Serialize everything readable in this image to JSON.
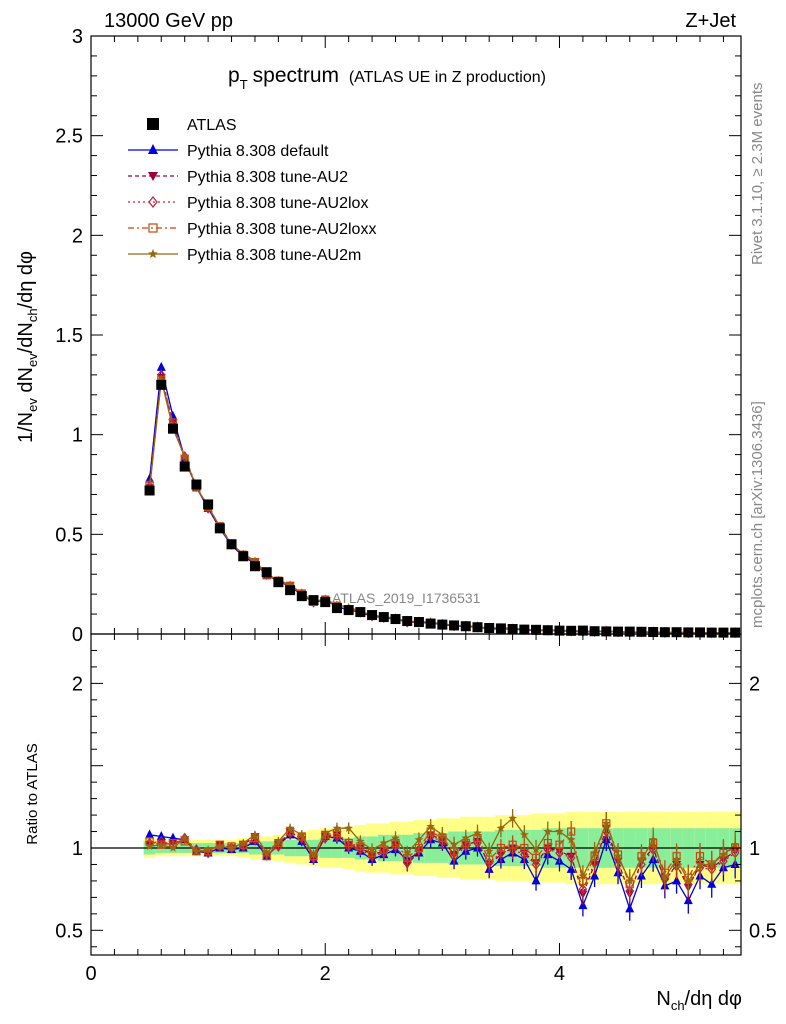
{
  "header": {
    "left": "13000 GeV pp",
    "right": "Z+Jet"
  },
  "title": {
    "main": "p",
    "main_sub": "T",
    "main_rest": "spectrum",
    "sub": "(ATLAS UE in Z production)"
  },
  "side": {
    "rivet": "Rivet 3.1.10, ≥ 2.3M events",
    "mcplots": "mcplots.cern.ch [arXiv:1306.3436]"
  },
  "watermark": "ATLAS_2019_I1736531",
  "axes": {
    "ylabel_main": "1/N_ev dN_ev/dN_ch/dη dφ",
    "ylabel_ratio": "Ratio to ATLAS",
    "xlabel": "N_ch/dη dφ",
    "main_ticks": [
      "0",
      "0.5",
      "1",
      "1.5",
      "2",
      "2.5",
      "3"
    ],
    "ratio_ticks": [
      "0.5",
      "1",
      "2"
    ],
    "x_ticks": [
      "0",
      "2",
      "4"
    ]
  },
  "colors": {
    "data": "#000000",
    "default": "#0000dd",
    "au2": "#99003b",
    "au2lox": "#c0203a",
    "au2loxx": "#cc4411",
    "au2m": "#996611",
    "band_green": "#88ee99",
    "band_yellow": "#ffff88"
  },
  "chart_data": {
    "type": "line",
    "title": "p_T spectrum (ATLAS UE in Z production)",
    "xlabel": "N_ch/dη dφ",
    "ylabel": "1/N_ev dN_ev/dN_ch/dη dφ",
    "xlim": [
      0,
      5.55
    ],
    "ylim": [
      0,
      3
    ],
    "ratio_ylim": [
      0.35,
      2.3
    ],
    "legend_position": "top-left",
    "x": [
      0.5,
      0.6,
      0.7,
      0.8,
      0.9,
      1.0,
      1.1,
      1.2,
      1.3,
      1.4,
      1.5,
      1.6,
      1.7,
      1.8,
      1.9,
      2.0,
      2.1,
      2.2,
      2.3,
      2.4,
      2.5,
      2.6,
      2.7,
      2.8,
      2.9,
      3.0,
      3.1,
      3.2,
      3.3,
      3.4,
      3.5,
      3.6,
      3.7,
      3.8,
      3.9,
      4.0,
      4.1,
      4.2,
      4.3,
      4.4,
      4.5,
      4.6,
      4.7,
      4.8,
      4.9,
      5.0,
      5.1,
      5.2,
      5.3,
      5.4,
      5.5
    ],
    "series": [
      {
        "name": "ATLAS",
        "values": [
          0.72,
          1.25,
          1.03,
          0.84,
          0.75,
          0.65,
          0.53,
          0.45,
          0.39,
          0.34,
          0.31,
          0.26,
          0.22,
          0.19,
          0.17,
          0.16,
          0.13,
          0.12,
          0.11,
          0.095,
          0.085,
          0.075,
          0.065,
          0.06,
          0.052,
          0.047,
          0.043,
          0.039,
          0.034,
          0.03,
          0.028,
          0.025,
          0.022,
          0.021,
          0.019,
          0.017,
          0.016,
          0.017,
          0.014,
          0.013,
          0.012,
          0.012,
          0.011,
          0.01,
          0.009,
          0.009,
          0.008,
          0.008,
          0.007,
          0.007,
          0.007
        ]
      },
      {
        "name": "Pythia 8.308 default",
        "ratio": [
          1.08,
          1.07,
          1.06,
          1.05,
          0.98,
          0.97,
          1.0,
          0.99,
          1.0,
          1.04,
          0.95,
          1.02,
          1.08,
          1.04,
          0.93,
          1.07,
          1.06,
          1.0,
          0.98,
          0.93,
          0.96,
          0.99,
          0.93,
          0.97,
          1.05,
          1.03,
          0.92,
          0.98,
          1.0,
          0.87,
          0.93,
          0.97,
          0.93,
          0.8,
          0.96,
          0.92,
          0.87,
          0.65,
          0.83,
          1.05,
          0.85,
          0.63,
          0.83,
          0.93,
          0.77,
          0.8,
          0.68,
          0.83,
          0.78,
          0.88,
          0.9
        ]
      },
      {
        "name": "Pythia 8.308 tune-AU2",
        "ratio": [
          1.02,
          1.03,
          1.03,
          1.05,
          0.98,
          0.98,
          1.02,
          1.0,
          1.02,
          1.07,
          0.95,
          1.02,
          1.1,
          1.05,
          0.93,
          1.07,
          1.08,
          1.02,
          1.0,
          0.96,
          0.98,
          1.02,
          0.9,
          0.98,
          1.08,
          1.05,
          0.96,
          1.02,
          1.04,
          0.9,
          0.96,
          1.0,
          0.97,
          0.91,
          1.0,
          0.98,
          0.95,
          0.72,
          0.9,
          1.12,
          0.92,
          0.72,
          0.92,
          1.0,
          0.8,
          0.9,
          0.76,
          0.9,
          0.88,
          0.93,
          0.98
        ]
      },
      {
        "name": "Pythia 8.308 tune-AU2lox",
        "ratio": [
          1.03,
          1.04,
          1.02,
          1.06,
          0.99,
          0.97,
          1.01,
          1.0,
          1.01,
          1.05,
          0.96,
          1.01,
          1.09,
          1.06,
          0.94,
          1.06,
          1.07,
          1.01,
          0.99,
          0.95,
          0.97,
          1.01,
          0.91,
          0.99,
          1.07,
          1.04,
          0.95,
          1.01,
          1.03,
          0.91,
          0.97,
          0.99,
          0.96,
          0.9,
          0.99,
          0.97,
          0.94,
          0.75,
          0.91,
          1.1,
          0.9,
          0.74,
          0.9,
          0.99,
          0.81,
          0.89,
          0.78,
          0.88,
          0.87,
          0.92,
          0.97
        ]
      },
      {
        "name": "Pythia 8.308 tune-AU2loxx",
        "ratio": [
          1.04,
          1.02,
          1.03,
          1.04,
          0.98,
          0.98,
          1.02,
          1.01,
          1.02,
          1.06,
          0.95,
          1.03,
          1.1,
          1.07,
          0.95,
          1.08,
          1.09,
          1.03,
          1.01,
          0.97,
          0.99,
          1.03,
          0.94,
          1.0,
          1.1,
          1.06,
          0.98,
          1.03,
          1.06,
          0.93,
          1.0,
          1.02,
          1.0,
          0.94,
          1.03,
          1.02,
          1.1,
          0.8,
          0.95,
          1.15,
          0.96,
          0.78,
          0.95,
          1.03,
          0.85,
          0.95,
          0.82,
          0.95,
          0.9,
          0.97,
          1.0
        ]
      },
      {
        "name": "Pythia 8.308 tune-AU2m",
        "ratio": [
          1.01,
          1.02,
          1.0,
          1.06,
          0.98,
          0.99,
          1.01,
          1.0,
          1.03,
          1.08,
          0.97,
          1.04,
          1.12,
          1.08,
          0.96,
          1.09,
          1.12,
          1.12,
          1.04,
          0.99,
          1.03,
          1.06,
          0.97,
          1.05,
          1.13,
          1.08,
          1.02,
          1.06,
          1.09,
          0.98,
          1.12,
          1.18,
          1.08,
          0.99,
          1.1,
          1.1,
          1.05,
          0.83,
          0.97,
          1.15,
          0.95,
          0.8,
          0.93,
          1.05,
          0.82,
          0.93,
          0.8,
          0.9,
          0.9,
          0.96,
          1.02
        ]
      }
    ],
    "band_green": [
      0.04,
      0.03,
      0.03,
      0.03,
      0.03,
      0.03,
      0.03,
      0.03,
      0.03,
      0.04,
      0.04,
      0.04,
      0.05,
      0.05,
      0.05,
      0.06,
      0.06,
      0.06,
      0.07,
      0.07,
      0.08,
      0.08,
      0.08,
      0.09,
      0.09,
      0.09,
      0.1,
      0.1,
      0.1,
      0.1,
      0.11,
      0.11,
      0.11,
      0.11,
      0.12,
      0.12,
      0.12,
      0.12,
      0.12,
      0.12,
      0.12,
      0.12,
      0.12,
      0.12,
      0.12,
      0.12,
      0.12,
      0.12,
      0.12,
      0.12,
      0.12
    ],
    "band_yellow": [
      0.06,
      0.05,
      0.05,
      0.05,
      0.05,
      0.05,
      0.05,
      0.05,
      0.06,
      0.07,
      0.07,
      0.08,
      0.09,
      0.1,
      0.11,
      0.12,
      0.12,
      0.13,
      0.14,
      0.15,
      0.15,
      0.16,
      0.16,
      0.17,
      0.17,
      0.18,
      0.18,
      0.19,
      0.19,
      0.19,
      0.2,
      0.2,
      0.2,
      0.21,
      0.21,
      0.21,
      0.22,
      0.22,
      0.22,
      0.22,
      0.22,
      0.22,
      0.22,
      0.22,
      0.22,
      0.22,
      0.22,
      0.22,
      0.22,
      0.22,
      0.22
    ]
  }
}
